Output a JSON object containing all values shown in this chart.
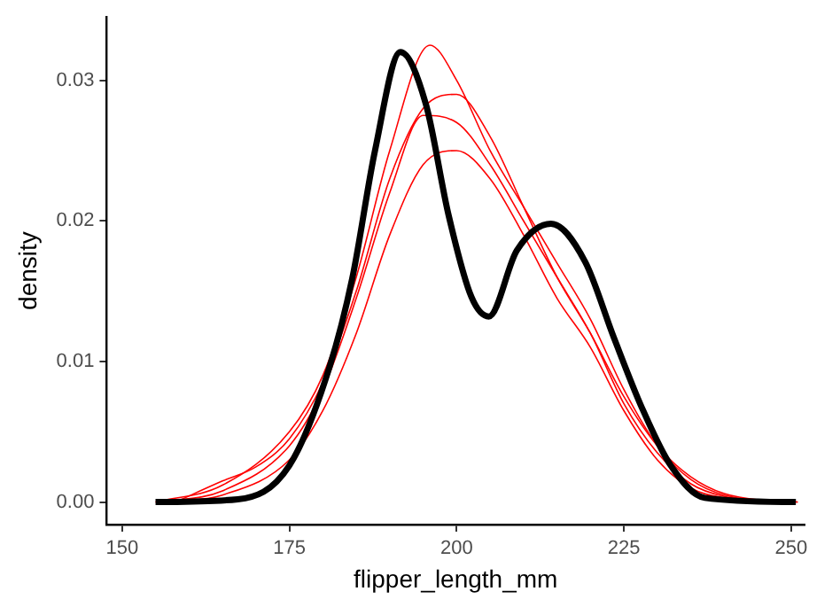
{
  "chart_data": {
    "type": "line",
    "xlabel": "flipper_length_mm",
    "ylabel": "density",
    "xlim": [
      147.7,
      252
    ],
    "ylim": [
      -0.0016,
      0.0345
    ],
    "xticks": [
      150,
      175,
      200,
      225,
      250
    ],
    "yticks": [
      {
        "value": 0,
        "label": "0.00"
      },
      {
        "value": 0.01,
        "label": "0.01"
      },
      {
        "value": 0.02,
        "label": "0.02"
      },
      {
        "value": 0.03,
        "label": "0.03"
      }
    ],
    "grid": false,
    "legend": false,
    "marker": "none",
    "line_style": "solid",
    "series": [
      {
        "color": "#ff0000",
        "x": [
          155,
          165,
          175,
          180,
          185,
          190,
          196,
          200,
          205,
          210,
          215,
          220,
          225,
          230,
          235,
          240,
          251
        ],
        "values": [
          0,
          0.0012,
          0.005,
          0.009,
          0.016,
          0.025,
          0.0325,
          0.03,
          0.025,
          0.021,
          0.017,
          0.013,
          0.008,
          0.004,
          0.0016,
          0.0005,
          0
        ]
      },
      {
        "color": "#ff0000",
        "x": [
          156,
          165,
          175,
          180,
          185,
          190,
          195,
          200,
          205,
          210,
          215,
          220,
          225,
          230,
          235,
          240,
          250
        ],
        "values": [
          0,
          0.0008,
          0.004,
          0.008,
          0.0145,
          0.022,
          0.0275,
          0.027,
          0.024,
          0.02,
          0.016,
          0.012,
          0.007,
          0.0035,
          0.0013,
          0.0004,
          0
        ]
      },
      {
        "color": "#ff0000",
        "x": [
          157,
          165,
          175,
          180,
          185,
          190,
          195,
          200,
          205,
          210,
          215,
          220,
          225,
          230,
          235,
          240,
          249
        ],
        "values": [
          0,
          0.0005,
          0.003,
          0.0065,
          0.012,
          0.019,
          0.024,
          0.025,
          0.023,
          0.019,
          0.0145,
          0.011,
          0.0065,
          0.003,
          0.001,
          0.0003,
          0
        ]
      },
      {
        "color": "#ff0000",
        "x": [
          158,
          165,
          170,
          175,
          180,
          185,
          190,
          195,
          200,
          205,
          210,
          215,
          220,
          225,
          230,
          235,
          240,
          248
        ],
        "values": [
          0,
          0.0015,
          0.0025,
          0.0045,
          0.0085,
          0.015,
          0.023,
          0.028,
          0.029,
          0.026,
          0.021,
          0.016,
          0.012,
          0.0075,
          0.004,
          0.0018,
          0.0006,
          0
        ]
      },
      {
        "color": "#000000",
        "x": [
          155,
          167.3,
          175,
          181,
          184.4,
          187.8,
          191.6,
          195.4,
          198.8,
          202.2,
          204.8,
          209,
          214.1,
          219.2,
          223.5,
          227.7,
          232,
          237.1,
          250.7
        ],
        "values": [
          0,
          0.0002,
          0.0026,
          0.0096,
          0.0159,
          0.025,
          0.032,
          0.0283,
          0.0204,
          0.0146,
          0.0132,
          0.0179,
          0.0198,
          0.0171,
          0.0117,
          0.0067,
          0.0026,
          0.0003,
          0
        ]
      }
    ]
  }
}
